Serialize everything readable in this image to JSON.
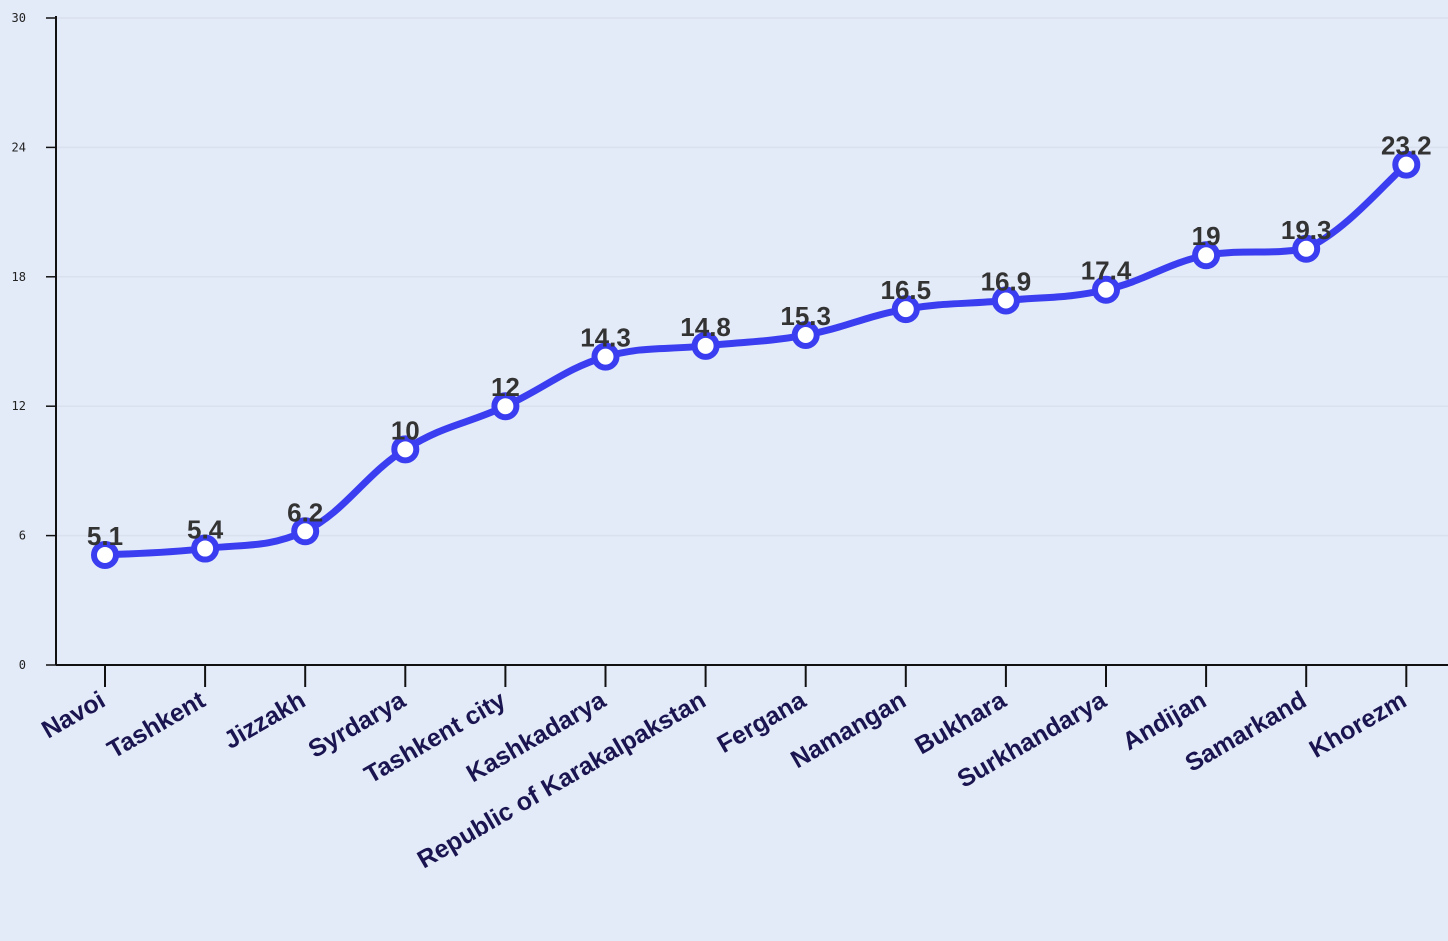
{
  "chart_data": {
    "type": "line",
    "categories": [
      "Navoi",
      "Tashkent",
      "Jizzakh",
      "Syrdarya",
      "Tashkent city",
      "Kashkadarya",
      "Republic of Karakalpakstan",
      "Fergana",
      "Namangan",
      "Bukhara",
      "Surkhandarya",
      "Andijan",
      "Samarkand",
      "Khorezm"
    ],
    "values": [
      5.1,
      5.4,
      6.2,
      10,
      12,
      14.3,
      14.8,
      15.3,
      16.5,
      16.9,
      17.4,
      19,
      19.3,
      23.2
    ],
    "data_labels": [
      "5.1",
      "5.4",
      "6.2",
      "10",
      "12",
      "14.3",
      "14.8",
      "15.3",
      "16.5",
      "16.9",
      "17.4",
      "19",
      "19.3",
      "23.2"
    ],
    "ylim": [
      0,
      30
    ],
    "yticks": [
      0,
      6,
      12,
      18,
      24,
      30
    ],
    "grid": true,
    "smooth": true,
    "colors": {
      "line": "#3a3ef0",
      "marker_fill": "#ffffff",
      "background": "#e3eaf8",
      "grid": "#d9e0ee",
      "axis": "#111111",
      "category_label": "#1a1550",
      "data_label": "#333333"
    }
  }
}
